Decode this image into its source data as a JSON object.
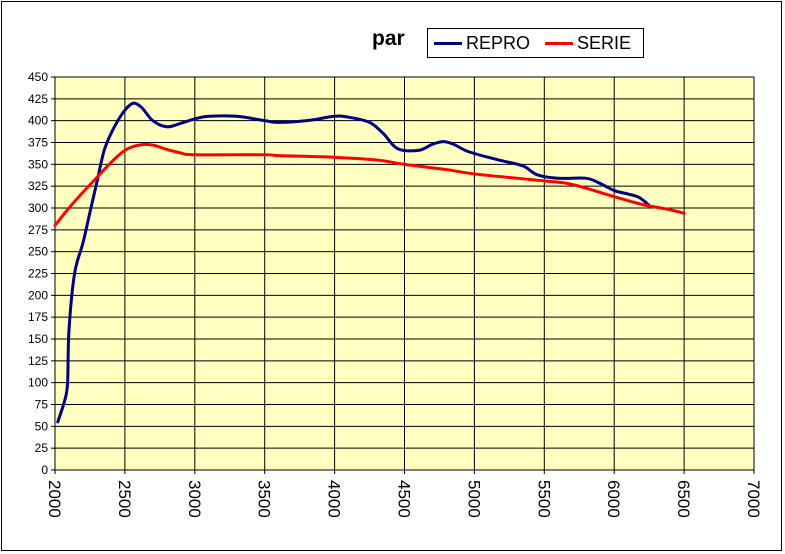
{
  "chart_data": {
    "type": "line",
    "title": "par",
    "xlabel": "",
    "ylabel": "",
    "xlim": [
      2000,
      7000
    ],
    "ylim": [
      0,
      450
    ],
    "x_ticks": [
      2000,
      2500,
      3000,
      3500,
      4000,
      4500,
      5000,
      5500,
      6000,
      6500,
      7000
    ],
    "y_ticks": [
      0,
      25,
      50,
      75,
      100,
      125,
      150,
      175,
      200,
      225,
      250,
      275,
      300,
      325,
      350,
      375,
      400,
      425,
      450
    ],
    "grid": true,
    "legend_position": "top",
    "plot_background": "#ffffc0",
    "series": [
      {
        "name": "REPRO",
        "color": "#000080",
        "points": [
          [
            2020,
            55
          ],
          [
            2070,
            80
          ],
          [
            2090,
            100
          ],
          [
            2100,
            160
          ],
          [
            2140,
            225
          ],
          [
            2200,
            260
          ],
          [
            2250,
            295
          ],
          [
            2300,
            330
          ],
          [
            2350,
            365
          ],
          [
            2400,
            385
          ],
          [
            2450,
            400
          ],
          [
            2500,
            412
          ],
          [
            2560,
            420
          ],
          [
            2620,
            415
          ],
          [
            2700,
            400
          ],
          [
            2800,
            393
          ],
          [
            2900,
            397
          ],
          [
            3000,
            402
          ],
          [
            3100,
            405
          ],
          [
            3300,
            405
          ],
          [
            3500,
            400
          ],
          [
            3600,
            398
          ],
          [
            3800,
            400
          ],
          [
            4000,
            405
          ],
          [
            4100,
            404
          ],
          [
            4250,
            398
          ],
          [
            4350,
            385
          ],
          [
            4450,
            368
          ],
          [
            4600,
            366
          ],
          [
            4700,
            373
          ],
          [
            4780,
            376
          ],
          [
            4850,
            373
          ],
          [
            4950,
            365
          ],
          [
            5100,
            358
          ],
          [
            5200,
            354
          ],
          [
            5350,
            348
          ],
          [
            5450,
            338
          ],
          [
            5600,
            334
          ],
          [
            5800,
            334
          ],
          [
            5900,
            328
          ],
          [
            6000,
            320
          ],
          [
            6100,
            316
          ],
          [
            6180,
            312
          ],
          [
            6250,
            303
          ]
        ]
      },
      {
        "name": "SERIE",
        "color": "#ff0000",
        "points": [
          [
            2000,
            280
          ],
          [
            2100,
            300
          ],
          [
            2200,
            318
          ],
          [
            2300,
            335
          ],
          [
            2400,
            352
          ],
          [
            2500,
            366
          ],
          [
            2600,
            372
          ],
          [
            2700,
            372
          ],
          [
            2800,
            367
          ],
          [
            2900,
            363
          ],
          [
            3000,
            361
          ],
          [
            3500,
            361
          ],
          [
            3600,
            360
          ],
          [
            4000,
            358
          ],
          [
            4300,
            355
          ],
          [
            4500,
            350
          ],
          [
            4800,
            344
          ],
          [
            5000,
            339
          ],
          [
            5500,
            331
          ],
          [
            5700,
            327
          ],
          [
            6000,
            313
          ],
          [
            6200,
            304
          ],
          [
            6300,
            301
          ],
          [
            6400,
            298
          ],
          [
            6500,
            294
          ]
        ]
      }
    ]
  }
}
